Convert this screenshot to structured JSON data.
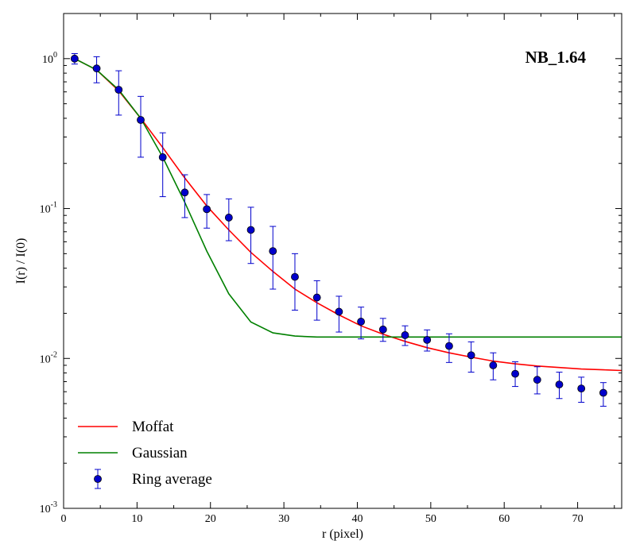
{
  "chart_data": {
    "type": "line",
    "title": "NB_1.64",
    "xlabel": "r (pixel)",
    "ylabel": "I(r) / I(0)",
    "xlim": [
      0,
      76
    ],
    "ylim": [
      0.001,
      2
    ],
    "yscale": "log",
    "x_ticks": [
      0,
      10,
      20,
      30,
      40,
      50,
      60,
      70
    ],
    "x_tick_labels": [
      "0",
      "10",
      "20",
      "30",
      "40",
      "50",
      "60",
      "70"
    ],
    "y_ticks": [
      0.001,
      0.01,
      0.1,
      1
    ],
    "y_tick_labels": [
      {
        "base": "10",
        "exp": "-3"
      },
      {
        "base": "10",
        "exp": "-2"
      },
      {
        "base": "10",
        "exp": "-1"
      },
      {
        "base": "10",
        "exp": "0"
      }
    ],
    "legend_position": "lower-left",
    "series": [
      {
        "name": "Moffat",
        "kind": "line",
        "color": "#ff0000",
        "x": [
          1.5,
          4.5,
          7.5,
          10.5,
          13.5,
          16.5,
          19.5,
          22.5,
          25.5,
          28.5,
          31.5,
          34.5,
          37.5,
          40.5,
          43.5,
          46.5,
          49.5,
          52.5,
          55.5,
          58.5,
          61.5,
          64.5,
          67.5,
          70.5,
          73.5,
          76
        ],
        "y": [
          1.0,
          0.84,
          0.61,
          0.4,
          0.255,
          0.16,
          0.104,
          0.072,
          0.051,
          0.038,
          0.029,
          0.0235,
          0.0195,
          0.0165,
          0.0145,
          0.013,
          0.0118,
          0.0109,
          0.0102,
          0.0096,
          0.0092,
          0.0089,
          0.0087,
          0.0085,
          0.0084,
          0.0083
        ]
      },
      {
        "name": "Gaussian",
        "kind": "line",
        "color": "#008000",
        "x": [
          1.5,
          4.5,
          7.5,
          10.5,
          13.5,
          16.5,
          19.5,
          22.5,
          25.5,
          28.5,
          31.5,
          34.5,
          37.5,
          40.5,
          50,
          60,
          70,
          76
        ],
        "y": [
          1.0,
          0.84,
          0.62,
          0.4,
          0.22,
          0.11,
          0.052,
          0.027,
          0.0175,
          0.0148,
          0.0141,
          0.0139,
          0.0139,
          0.0139,
          0.0139,
          0.0139,
          0.0139,
          0.0139
        ]
      },
      {
        "name": "Ring average",
        "kind": "errorbar",
        "color": "#0000cc",
        "x": [
          1.5,
          4.5,
          7.5,
          10.5,
          13.5,
          16.5,
          19.5,
          22.5,
          25.5,
          28.5,
          31.5,
          34.5,
          37.5,
          40.5,
          43.5,
          46.5,
          49.5,
          52.5,
          55.5,
          58.5,
          61.5,
          64.5,
          67.5,
          70.5,
          73.5
        ],
        "y": [
          1.0,
          0.86,
          0.62,
          0.39,
          0.22,
          0.128,
          0.099,
          0.087,
          0.072,
          0.052,
          0.035,
          0.0255,
          0.0205,
          0.0176,
          0.0156,
          0.0143,
          0.0133,
          0.0121,
          0.0105,
          0.009,
          0.0079,
          0.0072,
          0.0067,
          0.0063,
          0.0059
        ],
        "y_low": [
          0.92,
          0.69,
          0.42,
          0.22,
          0.12,
          0.087,
          0.074,
          0.061,
          0.043,
          0.029,
          0.021,
          0.018,
          0.015,
          0.0135,
          0.013,
          0.0122,
          0.0112,
          0.0094,
          0.0081,
          0.0072,
          0.0065,
          0.0058,
          0.0054,
          0.0051,
          0.0048
        ],
        "y_high": [
          1.08,
          1.03,
          0.83,
          0.56,
          0.32,
          0.168,
          0.124,
          0.116,
          0.102,
          0.076,
          0.05,
          0.033,
          0.026,
          0.022,
          0.0185,
          0.0165,
          0.0155,
          0.0146,
          0.0129,
          0.0109,
          0.0095,
          0.0088,
          0.0081,
          0.0075,
          0.0069
        ]
      }
    ]
  }
}
